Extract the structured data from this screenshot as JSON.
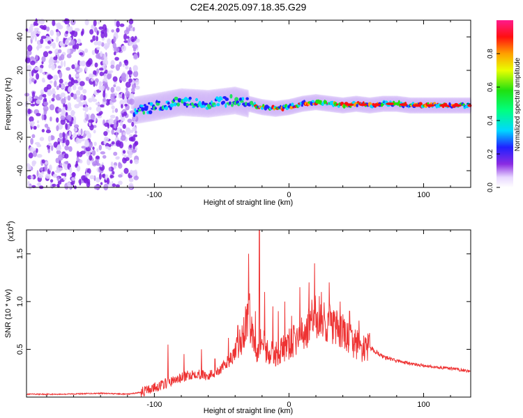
{
  "title": "C2E4.2025.097.18.35.G29",
  "chart_data": [
    {
      "type": "heatmap",
      "title": "C2E4.2025.097.18.35.G29",
      "xlabel": "Height of straight line (km)",
      "ylabel": "Frequency (Hz)",
      "xlim": [
        -195,
        135
      ],
      "ylim": [
        -50,
        50
      ],
      "xticks": [
        -100,
        0,
        100
      ],
      "yticks": [
        -40,
        -20,
        0,
        20,
        40
      ],
      "ridge": {
        "x": [
          -115,
          -100,
          -80,
          -60,
          -40,
          -30,
          -20,
          -10,
          0,
          10,
          20,
          30,
          40,
          50,
          60,
          70,
          80,
          90,
          100,
          110,
          120,
          130,
          135
        ],
        "y": [
          -4,
          -2,
          1,
          0,
          2,
          0,
          -2,
          -3,
          -2,
          0,
          1,
          0,
          -1,
          0,
          -1,
          0,
          0,
          -1,
          -1,
          -1,
          -1,
          -1,
          -1
        ]
      },
      "noise_region": {
        "x": [
          -195,
          -112
        ],
        "y": [
          -50,
          50
        ]
      },
      "colorbar": {
        "label": "Normalized spectral amplitude",
        "range": [
          0,
          1
        ],
        "ticks": [
          0.0,
          0.2,
          0.4,
          0.6,
          0.8
        ]
      },
      "grid": false
    },
    {
      "type": "line",
      "xlabel": "Height of straight line (km)",
      "ylabel": "SNR (10 * v/v)",
      "multiplier": "(x10",
      "multiplier_exp": "4",
      "xlim": [
        -195,
        135
      ],
      "ylim": [
        0,
        1.75
      ],
      "xticks": [
        -100,
        0,
        100
      ],
      "yticks": [
        0.5,
        1.0,
        1.5
      ],
      "ytick_labels": [
        "0.5",
        "1.0",
        "1.5"
      ],
      "series": [
        {
          "color": "#ee3333",
          "x": [
            -195,
            -170,
            -140,
            -120,
            -110,
            -100,
            -90,
            -80,
            -70,
            -60,
            -50,
            -40,
            -35,
            -30,
            -25,
            -20,
            -15,
            -10,
            -5,
            0,
            5,
            10,
            15,
            20,
            25,
            30,
            35,
            40,
            45,
            50,
            55,
            60,
            70,
            80,
            90,
            100,
            110,
            120,
            130,
            135
          ],
          "y": [
            0.03,
            0.03,
            0.04,
            0.03,
            0.05,
            0.1,
            0.15,
            0.2,
            0.25,
            0.22,
            0.3,
            0.45,
            0.6,
            0.9,
            0.5,
            0.6,
            0.45,
            0.45,
            0.5,
            0.55,
            0.6,
            0.65,
            0.75,
            0.85,
            0.8,
            0.78,
            0.7,
            0.68,
            0.6,
            0.55,
            0.5,
            0.52,
            0.42,
            0.38,
            0.35,
            0.33,
            0.31,
            0.3,
            0.28,
            0.27
          ]
        }
      ],
      "spikes": {
        "x": [
          -90,
          -78,
          -65,
          -55,
          -45,
          -38,
          -30,
          -25,
          -22,
          -18,
          -12,
          -8,
          -3,
          2,
          8,
          15,
          19,
          24,
          30,
          38,
          45,
          52
        ],
        "y": [
          0.55,
          0.45,
          0.5,
          0.4,
          0.62,
          0.75,
          1.5,
          0.9,
          1.75,
          1.1,
          0.95,
          0.9,
          1.0,
          0.85,
          1.15,
          1.2,
          1.4,
          1.1,
          1.2,
          1.0,
          0.9,
          0.8
        ]
      },
      "grid": false
    }
  ]
}
